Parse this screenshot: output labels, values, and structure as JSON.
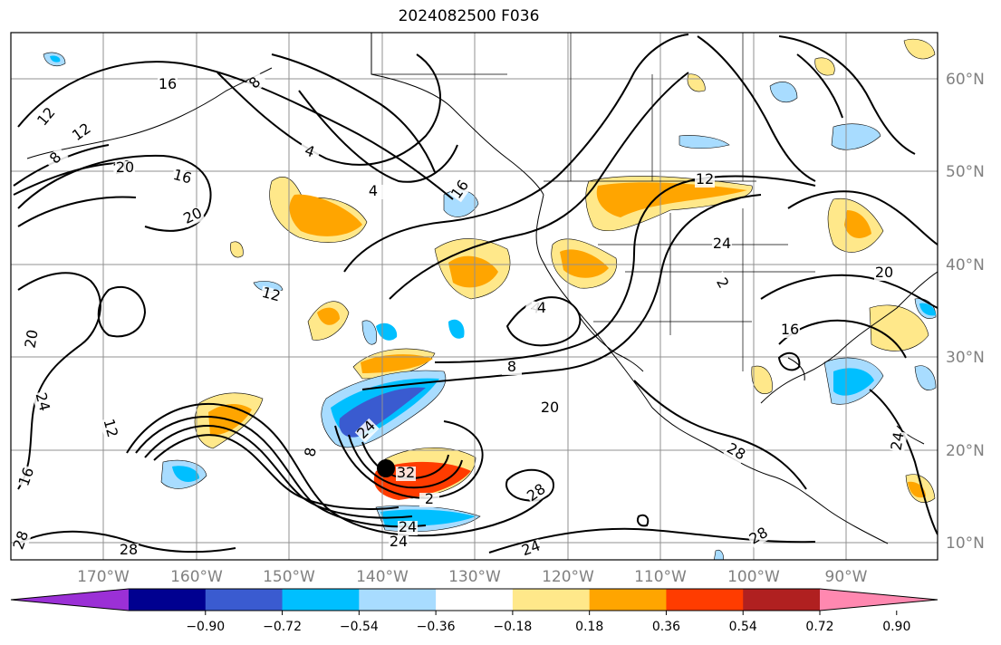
{
  "title": "2024082500 F036",
  "latitude_labels": [
    "60°N",
    "50°N",
    "40°N",
    "30°N",
    "20°N",
    "10°N"
  ],
  "longitude_labels": [
    "170°W",
    "160°W",
    "150°W",
    "140°W",
    "130°W",
    "120°W",
    "110°W",
    "100°W",
    "90°W"
  ],
  "contour_labels": [
    "12",
    "12",
    "8",
    "16",
    "20",
    "16",
    "20",
    "4",
    "4",
    "16",
    "12",
    "24",
    "20",
    "12",
    "4",
    "2",
    "8",
    "20",
    "20",
    "24",
    "12",
    "16",
    "28",
    "8",
    "24",
    "32",
    "2",
    "24",
    "24",
    "28",
    "28",
    "24",
    "28",
    "28",
    "16",
    "20",
    "8",
    "24",
    "4"
  ],
  "colorbar": {
    "tick_labels": [
      "−0.90",
      "−0.72",
      "−0.54",
      "−0.36",
      "−0.18",
      "0.18",
      "0.36",
      "0.54",
      "0.72",
      "0.90"
    ],
    "colors": [
      "#9b30d6",
      "#000090",
      "#3a5bd0",
      "#00bfff",
      "#a8dcff",
      "#ffffff",
      "#ffe88a",
      "#ffa500",
      "#ff3c00",
      "#b02020",
      "#ff88b0"
    ],
    "extend": "both"
  },
  "map_colors": {
    "neg_strong": "#3a5bd0",
    "neg_mid": "#00bfff",
    "neg_light": "#a8dcff",
    "pos_light": "#ffe88a",
    "pos_mid": "#ffa500",
    "pos_strong": "#ff3c00"
  }
}
